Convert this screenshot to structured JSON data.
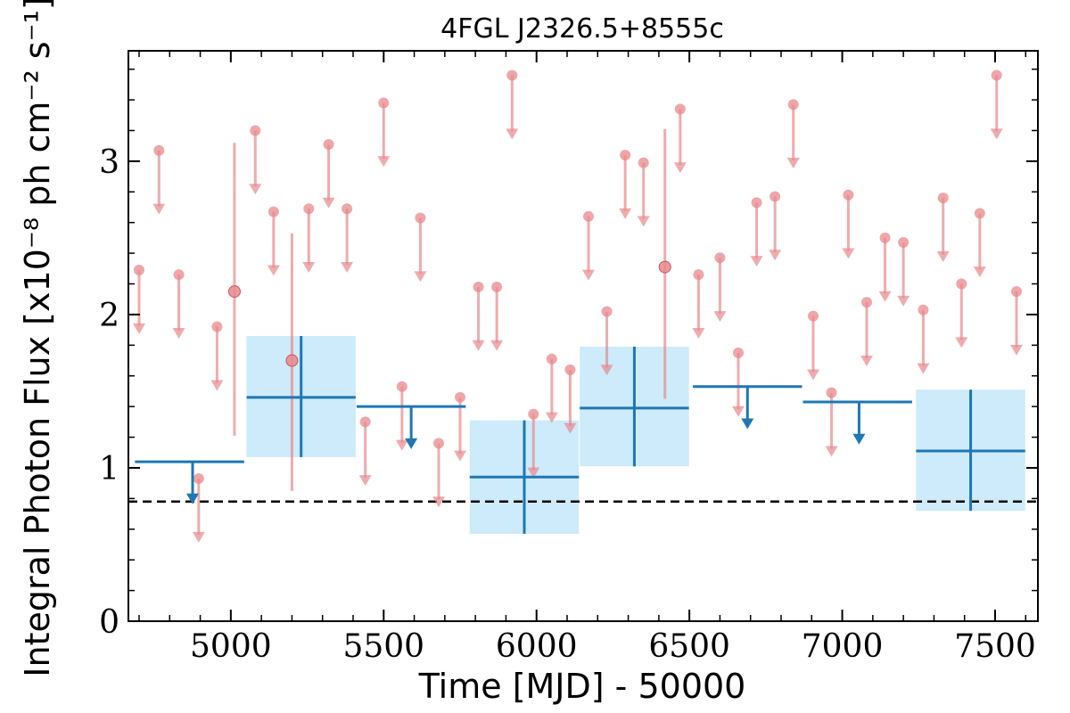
{
  "chart_data": {
    "type": "scatter",
    "title": "4FGL J2326.5+8555c",
    "xlabel": "Time [MJD] - 50000",
    "ylabel": "Integral Photon Flux [x10⁻⁸ ph cm⁻² s⁻¹]",
    "xlim": [
      4665,
      7640
    ],
    "ylim": [
      0,
      3.72
    ],
    "x_ticks": [
      5000,
      5500,
      6000,
      6500,
      7000,
      7500
    ],
    "x_tick_labels": [
      "5000",
      "5500",
      "6000",
      "6500",
      "7000",
      "7500"
    ],
    "y_ticks": [
      0,
      1,
      2,
      3
    ],
    "y_tick_labels": [
      "0",
      "1",
      "2",
      "3"
    ],
    "grid": false,
    "reference_line": {
      "y": 0.78,
      "style": "dashed",
      "color": "#000000"
    },
    "colors": {
      "coarse_bins": "#1f77b4",
      "coarse_band": "#cdebfa",
      "fine_bins": "#e8888c"
    },
    "series": [
      {
        "bin_width": 357,
        "detections": [
          {
            "x": 5230,
            "y": 1.46,
            "yerr_low": 0.39,
            "yerr_high": 0.4
          },
          {
            "x": 5960,
            "y": 0.94,
            "yerr_low": 0.37,
            "yerr_high": 0.37
          },
          {
            "x": 6320,
            "y": 1.39,
            "yerr_low": 0.38,
            "yerr_high": 0.4
          },
          {
            "x": 7420,
            "y": 1.11,
            "yerr_low": 0.39,
            "yerr_high": 0.4
          }
        ],
        "upper_limits": [
          {
            "x": 4865,
            "y": 1.04,
            "arrow_x": 4875
          },
          {
            "x": 5590,
            "y": 1.4,
            "arrow_x": 5590
          },
          {
            "x": 6690,
            "y": 1.53,
            "arrow_x": 6690
          },
          {
            "x": 7050,
            "y": 1.43,
            "arrow_x": 7055
          }
        ]
      },
      {
        "detections": [
          {
            "x": 5012,
            "y": 2.15,
            "yerr_low": 0.94,
            "yerr_high": 0.97
          },
          {
            "x": 5200,
            "y": 1.7,
            "yerr_low": 0.85,
            "yerr_high": 0.83
          },
          {
            "x": 6420,
            "y": 2.31,
            "yerr_low": 0.86,
            "yerr_high": 0.9
          }
        ],
        "upper_limits": [
          {
            "x": 4700,
            "y": 2.29
          },
          {
            "x": 4765,
            "y": 3.07
          },
          {
            "x": 4830,
            "y": 2.26
          },
          {
            "x": 4895,
            "y": 0.93
          },
          {
            "x": 4955,
            "y": 1.92
          },
          {
            "x": 5080,
            "y": 3.2
          },
          {
            "x": 5140,
            "y": 2.67
          },
          {
            "x": 5255,
            "y": 2.69
          },
          {
            "x": 5320,
            "y": 3.11
          },
          {
            "x": 5380,
            "y": 2.69
          },
          {
            "x": 5440,
            "y": 1.3
          },
          {
            "x": 5500,
            "y": 3.38
          },
          {
            "x": 5560,
            "y": 1.53
          },
          {
            "x": 5620,
            "y": 2.63
          },
          {
            "x": 5680,
            "y": 1.16
          },
          {
            "x": 5750,
            "y": 1.46
          },
          {
            "x": 5810,
            "y": 2.18
          },
          {
            "x": 5870,
            "y": 2.18
          },
          {
            "x": 5920,
            "y": 3.56
          },
          {
            "x": 5990,
            "y": 1.35
          },
          {
            "x": 6050,
            "y": 1.71
          },
          {
            "x": 6110,
            "y": 1.64
          },
          {
            "x": 6170,
            "y": 2.64
          },
          {
            "x": 6230,
            "y": 2.02
          },
          {
            "x": 6290,
            "y": 3.04
          },
          {
            "x": 6350,
            "y": 2.99
          },
          {
            "x": 6470,
            "y": 3.34
          },
          {
            "x": 6530,
            "y": 2.26
          },
          {
            "x": 6600,
            "y": 2.37
          },
          {
            "x": 6660,
            "y": 1.75
          },
          {
            "x": 6720,
            "y": 2.73
          },
          {
            "x": 6780,
            "y": 2.77
          },
          {
            "x": 6840,
            "y": 3.37
          },
          {
            "x": 6905,
            "y": 1.99
          },
          {
            "x": 6965,
            "y": 1.49
          },
          {
            "x": 7020,
            "y": 2.78
          },
          {
            "x": 7080,
            "y": 2.08
          },
          {
            "x": 7140,
            "y": 2.5
          },
          {
            "x": 7200,
            "y": 2.47
          },
          {
            "x": 7265,
            "y": 2.03
          },
          {
            "x": 7330,
            "y": 2.76
          },
          {
            "x": 7390,
            "y": 2.2
          },
          {
            "x": 7450,
            "y": 2.66
          },
          {
            "x": 7505,
            "y": 3.56
          },
          {
            "x": 7570,
            "y": 2.15
          }
        ]
      }
    ]
  }
}
